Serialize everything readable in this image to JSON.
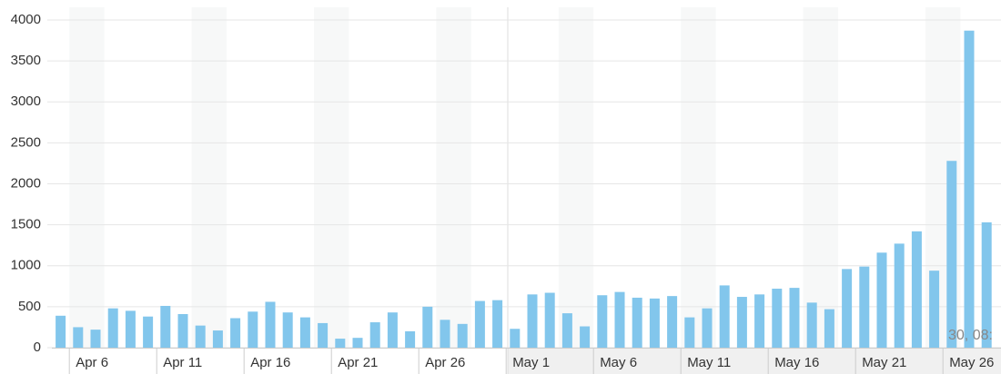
{
  "chart_data": {
    "type": "bar",
    "categories": [
      null,
      "Apr 6",
      null,
      null,
      null,
      null,
      "Apr 11",
      null,
      null,
      null,
      null,
      "Apr 16",
      null,
      null,
      null,
      null,
      "Apr 21",
      null,
      null,
      null,
      null,
      "Apr 26",
      null,
      null,
      null,
      null,
      "May 1",
      null,
      null,
      null,
      null,
      "May 6",
      null,
      null,
      null,
      null,
      "May 11",
      null,
      null,
      null,
      null,
      "May 16",
      null,
      null,
      null,
      null,
      "May 21",
      null,
      null,
      null,
      null,
      "May 26",
      null,
      null
    ],
    "values": [
      390,
      250,
      220,
      480,
      450,
      380,
      510,
      410,
      270,
      210,
      360,
      440,
      560,
      430,
      370,
      300,
      110,
      120,
      310,
      430,
      200,
      500,
      340,
      290,
      570,
      580,
      230,
      650,
      670,
      420,
      260,
      640,
      680,
      610,
      600,
      630,
      370,
      480,
      760,
      620,
      650,
      720,
      730,
      550,
      470,
      960,
      990,
      1160,
      1270,
      1420,
      940,
      2280,
      3870,
      1530
    ],
    "color": "#82c6ec",
    "ylim": [
      0,
      4000
    ],
    "yticks": [
      0,
      500,
      1000,
      1500,
      2000,
      2500,
      3000,
      3500,
      4000
    ],
    "grid": true,
    "annotation": "30, 08:"
  }
}
